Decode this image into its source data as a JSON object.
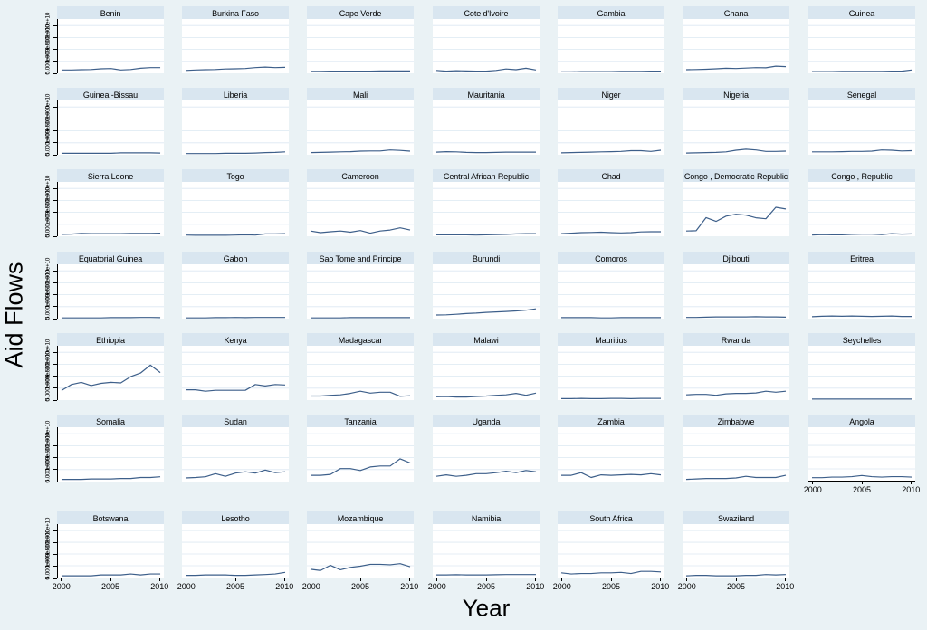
{
  "figure": {
    "ylabel": "Aid Flows",
    "xlabel": "Year",
    "colors": {
      "background": "#eaf2f5",
      "strip_background": "#d9e6f0",
      "plot_background": "#ffffff",
      "gridline": "#dce8f2",
      "line": "#3d5f8a",
      "axis": "#000000"
    }
  },
  "chart_data": {
    "type": "line",
    "layout": "small-multiples-by-country",
    "title": "",
    "xlabel": "Year",
    "ylabel": "Aid Flows",
    "grid": {
      "columns": 7,
      "rows": 7
    },
    "x": [
      2000,
      2001,
      2002,
      2003,
      2004,
      2005,
      2006,
      2007,
      2008,
      2009,
      2010
    ],
    "x_tick_labels": [
      "2000",
      "2005",
      "2010"
    ],
    "xlim": [
      2000,
      2010
    ],
    "y_tick_labels": [
      "0",
      "5.000e+09",
      "1.000e+10",
      "1.500e+10",
      "2.000e+10"
    ],
    "ylim_e9": [
      0,
      22.7
    ],
    "gridlines": "horizontal",
    "legend": "none",
    "series": [
      {
        "name": "Benin",
        "values_e9": [
          1.4,
          1.4,
          1.5,
          1.6,
          1.9,
          2.0,
          1.4,
          1.6,
          2.1,
          2.4,
          2.4
        ]
      },
      {
        "name": "Burkina Faso",
        "values_e9": [
          1.2,
          1.4,
          1.5,
          1.6,
          1.8,
          1.9,
          2.0,
          2.4,
          2.6,
          2.4,
          2.5
        ]
      },
      {
        "name": "Cape Verde",
        "values_e9": [
          0.8,
          0.8,
          0.9,
          0.9,
          0.9,
          0.9,
          0.9,
          1.0,
          1.0,
          1.0,
          1.0
        ]
      },
      {
        "name": "Cote d'Ivoire",
        "values_e9": [
          1.2,
          0.9,
          1.1,
          1.0,
          0.9,
          0.9,
          1.2,
          1.8,
          1.5,
          2.1,
          1.4
        ]
      },
      {
        "name": "Gambia",
        "values_e9": [
          0.6,
          0.6,
          0.7,
          0.7,
          0.7,
          0.7,
          0.8,
          0.8,
          0.8,
          0.9,
          0.9
        ]
      },
      {
        "name": "Ghana",
        "values_e9": [
          1.5,
          1.6,
          1.7,
          1.9,
          2.1,
          2.0,
          2.2,
          2.4,
          2.3,
          3.0,
          2.8
        ]
      },
      {
        "name": "Guinea",
        "values_e9": [
          0.7,
          0.7,
          0.7,
          0.8,
          0.8,
          0.8,
          0.8,
          0.8,
          0.9,
          0.9,
          1.4
        ]
      },
      {
        "name": "Guinea -Bissau",
        "values_e9": [
          0.6,
          0.6,
          0.6,
          0.6,
          0.6,
          0.6,
          0.8,
          0.8,
          0.8,
          0.8,
          0.7
        ]
      },
      {
        "name": "Liberia",
        "values_e9": [
          0.5,
          0.5,
          0.5,
          0.5,
          0.6,
          0.6,
          0.6,
          0.7,
          0.9,
          1.0,
          1.2
        ]
      },
      {
        "name": "Mali",
        "values_e9": [
          0.9,
          1.0,
          1.1,
          1.2,
          1.3,
          1.5,
          1.6,
          1.6,
          2.0,
          1.8,
          1.5
        ]
      },
      {
        "name": "Mauritania",
        "values_e9": [
          1.1,
          1.3,
          1.2,
          1.0,
          0.9,
          0.9,
          1.0,
          1.1,
          1.1,
          1.1,
          1.1
        ]
      },
      {
        "name": "Niger",
        "values_e9": [
          0.8,
          0.9,
          1.0,
          1.1,
          1.2,
          1.3,
          1.4,
          1.7,
          1.7,
          1.4,
          1.9
        ]
      },
      {
        "name": "Nigeria",
        "values_e9": [
          0.7,
          0.8,
          0.9,
          1.0,
          1.2,
          1.9,
          2.3,
          2.0,
          1.4,
          1.4,
          1.5
        ]
      },
      {
        "name": "Senegal",
        "values_e9": [
          1.2,
          1.2,
          1.2,
          1.3,
          1.4,
          1.4,
          1.5,
          2.0,
          1.9,
          1.6,
          1.7
        ]
      },
      {
        "name": "Sierra Leone",
        "values_e9": [
          0.8,
          0.9,
          1.2,
          1.1,
          1.1,
          1.1,
          1.1,
          1.2,
          1.2,
          1.2,
          1.3
        ]
      },
      {
        "name": "Togo",
        "values_e9": [
          0.5,
          0.4,
          0.4,
          0.4,
          0.4,
          0.5,
          0.6,
          0.5,
          1.0,
          1.0,
          1.1
        ]
      },
      {
        "name": "Cameroon",
        "values_e9": [
          2.2,
          1.5,
          1.9,
          2.2,
          1.7,
          2.4,
          1.3,
          2.2,
          2.6,
          3.5,
          2.6
        ]
      },
      {
        "name": "Central African Republic",
        "values_e9": [
          0.6,
          0.6,
          0.6,
          0.6,
          0.5,
          0.6,
          0.7,
          0.8,
          1.0,
          1.1,
          1.1
        ]
      },
      {
        "name": "Chad",
        "values_e9": [
          1.1,
          1.3,
          1.5,
          1.6,
          1.7,
          1.5,
          1.4,
          1.5,
          1.8,
          1.9,
          1.9
        ]
      },
      {
        "name": "Congo , Democratic Republic",
        "values_e9": [
          2.2,
          2.3,
          7.8,
          6.2,
          8.4,
          9.2,
          8.8,
          7.7,
          7.3,
          12.1,
          11.4
        ]
      },
      {
        "name": "Congo , Republic",
        "values_e9": [
          0.5,
          0.7,
          0.6,
          0.6,
          0.8,
          0.9,
          0.9,
          0.7,
          1.1,
          0.9,
          1.0
        ]
      },
      {
        "name": "Equatorial Guinea",
        "values_e9": [
          0.3,
          0.3,
          0.3,
          0.3,
          0.3,
          0.4,
          0.4,
          0.4,
          0.5,
          0.5,
          0.4
        ]
      },
      {
        "name": "Gabon",
        "values_e9": [
          0.3,
          0.3,
          0.3,
          0.4,
          0.4,
          0.5,
          0.4,
          0.5,
          0.5,
          0.5,
          0.5
        ]
      },
      {
        "name": "Sao Tome and Principe",
        "values_e9": [
          0.3,
          0.3,
          0.3,
          0.3,
          0.4,
          0.4,
          0.4,
          0.4,
          0.4,
          0.4,
          0.4
        ]
      },
      {
        "name": "Burundi",
        "values_e9": [
          1.5,
          1.6,
          1.8,
          2.1,
          2.3,
          2.6,
          2.8,
          3.0,
          3.2,
          3.5,
          4.1
        ]
      },
      {
        "name": "Comoros",
        "values_e9": [
          0.4,
          0.4,
          0.4,
          0.4,
          0.3,
          0.3,
          0.4,
          0.4,
          0.4,
          0.4,
          0.4
        ]
      },
      {
        "name": "Djibouti",
        "values_e9": [
          0.5,
          0.5,
          0.6,
          0.7,
          0.7,
          0.7,
          0.7,
          0.8,
          0.7,
          0.7,
          0.6
        ]
      },
      {
        "name": "Eritrea",
        "values_e9": [
          0.8,
          1.0,
          1.1,
          1.0,
          1.1,
          1.0,
          0.9,
          1.0,
          1.1,
          0.9,
          0.9
        ]
      },
      {
        "name": "Ethiopia",
        "values_e9": [
          4.0,
          6.5,
          7.4,
          6.1,
          7.0,
          7.4,
          7.2,
          9.8,
          11.3,
          14.6,
          11.5
        ]
      },
      {
        "name": "Kenya",
        "values_e9": [
          4.3,
          4.3,
          3.7,
          4.1,
          4.1,
          4.1,
          4.1,
          6.5,
          5.9,
          6.5,
          6.3
        ]
      },
      {
        "name": "Madagascar",
        "values_e9": [
          1.7,
          1.7,
          2.0,
          2.2,
          2.8,
          3.7,
          2.9,
          3.3,
          3.3,
          1.6,
          1.8
        ]
      },
      {
        "name": "Malawi",
        "values_e9": [
          1.4,
          1.5,
          1.3,
          1.3,
          1.5,
          1.7,
          2.0,
          2.2,
          2.8,
          2.0,
          2.9
        ]
      },
      {
        "name": "Mauritius",
        "values_e9": [
          0.6,
          0.6,
          0.7,
          0.6,
          0.6,
          0.7,
          0.7,
          0.6,
          0.7,
          0.7,
          0.7
        ]
      },
      {
        "name": "Rwanda",
        "values_e9": [
          2.2,
          2.4,
          2.4,
          2.0,
          2.6,
          2.8,
          2.8,
          3.0,
          3.7,
          3.3,
          3.7
        ]
      },
      {
        "name": "Seychelles",
        "values_e9": [
          0.4,
          0.4,
          0.4,
          0.4,
          0.4,
          0.4,
          0.4,
          0.4,
          0.4,
          0.4,
          0.4
        ]
      },
      {
        "name": "Somalia",
        "values_e9": [
          0.9,
          0.9,
          0.9,
          1.1,
          1.1,
          1.1,
          1.3,
          1.3,
          1.7,
          1.7,
          2.0
        ]
      },
      {
        "name": "Sudan",
        "values_e9": [
          1.5,
          1.7,
          2.0,
          3.3,
          2.2,
          3.5,
          4.1,
          3.5,
          4.8,
          3.7,
          4.1
        ]
      },
      {
        "name": "Tanzania",
        "values_e9": [
          2.6,
          2.6,
          3.0,
          5.4,
          5.4,
          4.6,
          6.1,
          6.5,
          6.5,
          9.5,
          7.8
        ]
      },
      {
        "name": "Uganda",
        "values_e9": [
          2.2,
          2.8,
          2.2,
          2.6,
          3.3,
          3.3,
          3.7,
          4.3,
          3.7,
          4.6,
          4.1
        ]
      },
      {
        "name": "Zambia",
        "values_e9": [
          2.6,
          2.6,
          3.7,
          1.7,
          2.8,
          2.6,
          2.8,
          3.0,
          2.8,
          3.3,
          2.8
        ]
      },
      {
        "name": "Zimbabwe",
        "values_e9": [
          0.9,
          1.1,
          1.3,
          1.3,
          1.3,
          1.5,
          2.2,
          1.7,
          1.7,
          1.7,
          2.6
        ]
      },
      {
        "name": "Angola",
        "values_e9": [
          1.3,
          1.3,
          1.5,
          1.5,
          1.7,
          2.2,
          1.7,
          1.5,
          1.7,
          1.7,
          1.5
        ]
      },
      {
        "name": "Botswana",
        "values_e9": [
          0.7,
          0.7,
          0.7,
          0.7,
          1.1,
          1.1,
          1.1,
          1.5,
          1.1,
          1.5,
          1.5
        ]
      },
      {
        "name": "Lesotho",
        "values_e9": [
          0.9,
          0.9,
          1.1,
          1.1,
          1.1,
          0.9,
          0.9,
          1.1,
          1.3,
          1.5,
          2.2
        ]
      },
      {
        "name": "Mozambique",
        "values_e9": [
          3.5,
          3.0,
          5.2,
          3.3,
          4.3,
          4.8,
          5.6,
          5.6,
          5.4,
          5.9,
          4.6
        ]
      },
      {
        "name": "Namibia",
        "values_e9": [
          1.1,
          1.1,
          1.2,
          1.1,
          1.1,
          1.1,
          1.2,
          1.3,
          1.3,
          1.3,
          1.3
        ]
      },
      {
        "name": "South Africa",
        "values_e9": [
          2.0,
          1.5,
          1.7,
          1.7,
          2.0,
          2.0,
          2.2,
          1.7,
          2.6,
          2.6,
          2.4
        ]
      },
      {
        "name": "Swaziland",
        "values_e9": [
          0.7,
          0.9,
          0.9,
          0.7,
          0.7,
          0.7,
          0.9,
          0.9,
          1.3,
          1.1,
          1.3
        ]
      }
    ]
  }
}
